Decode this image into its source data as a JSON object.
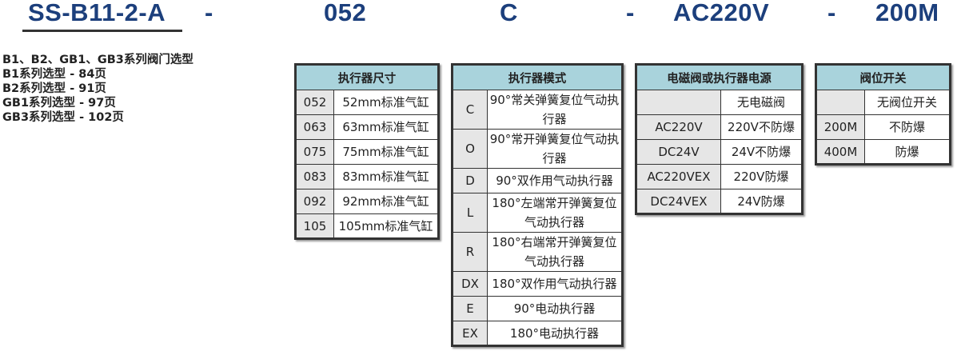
{
  "model_code": {
    "series": "SS-B11-2-A",
    "sep1": "-",
    "size": "052",
    "mode": "C",
    "sep2": "-",
    "power": "AC220V",
    "sep3": "-",
    "switch": "200M"
  },
  "notes": [
    "B1、B2、GB1、GB3系列阀门选型",
    "B1系列选型 -  84页",
    "B2系列选型 -  91页",
    "GB1系列选型 -  97页",
    "GB3系列选型 -  102页"
  ],
  "tables": [
    {
      "title": "执行器尺寸",
      "rows": [
        [
          "052",
          "52mm标准气缸"
        ],
        [
          "063",
          "63mm标准气缸"
        ],
        [
          "075",
          "75mm标准气缸"
        ],
        [
          "083",
          "83mm标准气缸"
        ],
        [
          "092",
          "92mm标准气缸"
        ],
        [
          "105",
          "105mm标准气缸"
        ]
      ]
    },
    {
      "title": "执行器模式",
      "rows": [
        [
          "C",
          "90°常关弹簧复位气动执行器"
        ],
        [
          "O",
          "90°常开弹簧复位气动执行器"
        ],
        [
          "D",
          "90°双作用气动执行器"
        ],
        [
          "L",
          "180°左端常开弹簧复位气动执行器"
        ],
        [
          "R",
          "180°右端常开弹簧复位气动执行器"
        ],
        [
          "DX",
          "180°双作用气动执行器"
        ],
        [
          "E",
          "90°电动执行器"
        ],
        [
          "EX",
          "180°电动执行器"
        ]
      ]
    },
    {
      "title": "电磁阀或执行器电源",
      "rows": [
        [
          "",
          "无电磁阀"
        ],
        [
          "AC220V",
          "220V不防爆"
        ],
        [
          "DC24V",
          "24V不防爆"
        ],
        [
          "AC220VEX",
          "220V防爆"
        ],
        [
          "DC24VEX",
          "24V防爆"
        ]
      ]
    },
    {
      "title": "阀位开关",
      "rows": [
        [
          "",
          "无阀位开关"
        ],
        [
          "200M",
          "不防爆"
        ],
        [
          "400M",
          "防爆"
        ]
      ]
    }
  ]
}
